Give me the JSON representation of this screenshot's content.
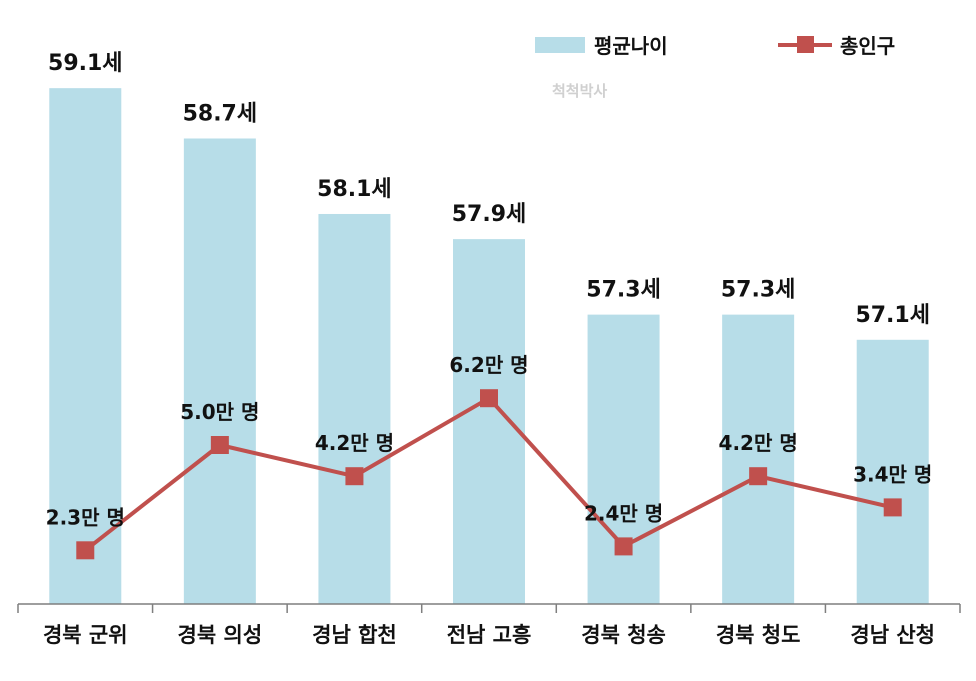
{
  "chart_data": {
    "type": "bar",
    "categories": [
      "경북 군위",
      "경북 의성",
      "경남 합천",
      "전남 고흥",
      "경북 청송",
      "경북 청도",
      "경남 산청"
    ],
    "series": [
      {
        "name": "평균나이",
        "type": "bar",
        "values": [
          59.1,
          58.7,
          58.1,
          57.9,
          57.3,
          57.3,
          57.1
        ],
        "labels": [
          "59.1세",
          "58.7세",
          "58.1세",
          "57.9세",
          "57.3세",
          "57.3세",
          "57.1세"
        ],
        "color": "#b7dde8"
      },
      {
        "name": "총인구",
        "type": "line",
        "values": [
          2.3,
          5.0,
          4.2,
          6.2,
          2.4,
          4.2,
          3.4
        ],
        "labels": [
          "2.3만 명",
          "5.0만 명",
          "4.2만 명",
          "6.2만 명",
          "2.4만 명",
          "4.2만 명",
          "3.4만 명"
        ],
        "color": "#c0504d"
      }
    ],
    "bar_axis_range": [
      55,
      59.3
    ],
    "line_axis_range": [
      0,
      10
    ],
    "watermark": "척척박사",
    "legend_position": "top-right"
  }
}
